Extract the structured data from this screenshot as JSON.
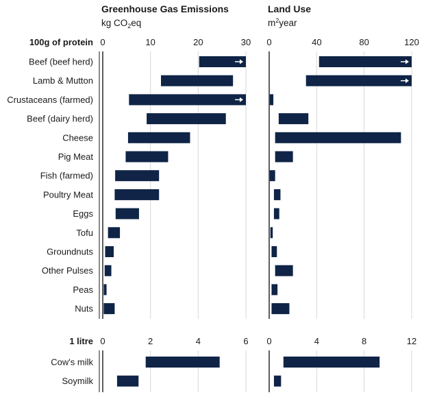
{
  "colors": {
    "bar": "#0f2446",
    "arrow": "#ffffff",
    "grid": "#d7d7d7",
    "axis": "#1a1a1a",
    "text": "#1a1a1a"
  },
  "chart_data": [
    {
      "type": "bar",
      "orientation": "horizontal",
      "subtype": "range",
      "title": "Greenhouse Gas Emissions",
      "unit_prefix": "kg CO",
      "unit_sub": "2",
      "unit_suffix": "eq",
      "groups": [
        {
          "label": "100g of protein",
          "xlim": [
            0,
            30
          ],
          "ticks": [
            "0",
            "10",
            "20",
            "30"
          ],
          "categories": [
            "Beef (beef herd)",
            "Lamb & Mutton",
            "Crustaceans (farmed)",
            "Beef (dairy herd)",
            "Cheese",
            "Pig Meat",
            "Fish (farmed)",
            "Poultry Meat",
            "Eggs",
            "Tofu",
            "Groundnuts",
            "Other Pulses",
            "Peas",
            "Nuts"
          ],
          "ranges": [
            [
              20.2,
              30
            ],
            [
              12.2,
              27.3
            ],
            [
              5.5,
              30
            ],
            [
              9.2,
              25.8
            ],
            [
              5.3,
              18.3
            ],
            [
              4.8,
              13.7
            ],
            [
              2.6,
              11.8
            ],
            [
              2.5,
              11.8
            ],
            [
              2.7,
              7.6
            ],
            [
              1.1,
              3.6
            ],
            [
              0.5,
              2.3
            ],
            [
              0.4,
              1.8
            ],
            [
              0.2,
              0.8
            ],
            [
              0.2,
              2.5
            ]
          ],
          "overflow": [
            true,
            false,
            true,
            false,
            false,
            false,
            false,
            false,
            false,
            false,
            false,
            false,
            false,
            false
          ]
        },
        {
          "label": "1 litre",
          "xlim": [
            0,
            6
          ],
          "ticks": [
            "0",
            "2",
            "4",
            "6"
          ],
          "categories": [
            "Cow's milk",
            "Soymilk"
          ],
          "ranges": [
            [
              1.8,
              4.9
            ],
            [
              0.6,
              1.5
            ]
          ],
          "overflow": [
            false,
            false
          ]
        }
      ]
    },
    {
      "type": "bar",
      "orientation": "horizontal",
      "subtype": "range",
      "title": "Land Use",
      "unit_prefix": "m",
      "unit_sup": "2",
      "unit_suffix": "year",
      "groups": [
        {
          "label": "100g of protein",
          "xlim": [
            0,
            120
          ],
          "ticks": [
            "0",
            "40",
            "80",
            "120"
          ],
          "categories": [
            "Beef (beef herd)",
            "Lamb & Mutton",
            "Crustaceans (farmed)",
            "Beef (dairy herd)",
            "Cheese",
            "Pig Meat",
            "Fish (farmed)",
            "Poultry Meat",
            "Eggs",
            "Tofu",
            "Groundnuts",
            "Other Pulses",
            "Peas",
            "Nuts"
          ],
          "ranges": [
            [
              42,
              120
            ],
            [
              31,
              120
            ],
            [
              0.5,
              3.5
            ],
            [
              8,
              33
            ],
            [
              5,
              111
            ],
            [
              5,
              20
            ],
            [
              0.5,
              5
            ],
            [
              4,
              9.5
            ],
            [
              4,
              8.5
            ],
            [
              1,
              3
            ],
            [
              2,
              6.5
            ],
            [
              5,
              20
            ],
            [
              2,
              7
            ],
            [
              2,
              17
            ]
          ],
          "overflow": [
            true,
            true,
            false,
            false,
            false,
            false,
            false,
            false,
            false,
            false,
            false,
            false,
            false,
            false
          ]
        },
        {
          "label": "1 litre",
          "xlim": [
            0,
            12
          ],
          "ticks": [
            "0",
            "4",
            "8",
            "12"
          ],
          "categories": [
            "Cow's milk",
            "Soymilk"
          ],
          "ranges": [
            [
              1.2,
              9.3
            ],
            [
              0.4,
              1.0
            ]
          ],
          "overflow": [
            false,
            false
          ]
        }
      ]
    }
  ]
}
